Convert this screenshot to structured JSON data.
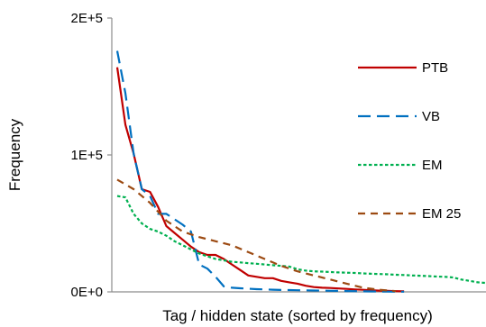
{
  "chart_data": {
    "type": "line",
    "title": "",
    "xlabel": "Tag / hidden state (sorted by frequency)",
    "ylabel": "Frequency",
    "ylim": [
      0,
      200000
    ],
    "xlim": [
      0,
      45
    ],
    "yticks": [
      {
        "value": 0,
        "label": "0E+0"
      },
      {
        "value": 100000,
        "label": "1E+5"
      },
      {
        "value": 200000,
        "label": "2E+5"
      }
    ],
    "grid": false,
    "legend_position": "right",
    "series": [
      {
        "name": "PTB",
        "color": "#c00000",
        "dash": "solid",
        "x": [
          0,
          1,
          2,
          3,
          4,
          5,
          6,
          7,
          8,
          9,
          10,
          11,
          12,
          13,
          14,
          15,
          16,
          17,
          18,
          19,
          20,
          21,
          22,
          23,
          24,
          25,
          26,
          27,
          28,
          29,
          30,
          31,
          32,
          33,
          34,
          35
        ],
        "y": [
          164000,
          122000,
          101000,
          75000,
          73000,
          62000,
          48000,
          43000,
          38000,
          33000,
          29000,
          27000,
          27000,
          24000,
          20000,
          16000,
          12000,
          11000,
          10000,
          10000,
          8000,
          7000,
          6000,
          4500,
          3500,
          3000,
          2800,
          2500,
          2200,
          1800,
          1500,
          1200,
          900,
          700,
          500,
          400
        ]
      },
      {
        "name": "VB",
        "color": "#0070c0",
        "dash": "long",
        "x": [
          0,
          1,
          2,
          3,
          4,
          5,
          6,
          7,
          8,
          9,
          10,
          11,
          12,
          13,
          14,
          15,
          16,
          17,
          18,
          19,
          20,
          21,
          22,
          23,
          24,
          25,
          26,
          27,
          28,
          29,
          30,
          31,
          32,
          33,
          34,
          35
        ],
        "y": [
          176000,
          145000,
          101000,
          75000,
          70000,
          57000,
          57000,
          53000,
          49000,
          44000,
          20000,
          17000,
          11000,
          4000,
          3000,
          2600,
          2300,
          2000,
          1800,
          1600,
          1400,
          1300,
          1200,
          1100,
          1000,
          900,
          800,
          700,
          600,
          500,
          400,
          300,
          250,
          200,
          150,
          100
        ]
      },
      {
        "name": "EM",
        "color": "#00b050",
        "dash": "dotted",
        "x": [
          0,
          1,
          2,
          3,
          4,
          5,
          6,
          7,
          8,
          9,
          10,
          11,
          12,
          13,
          14,
          15,
          16,
          17,
          18,
          19,
          20,
          21,
          22,
          23,
          24,
          25,
          26,
          27,
          28,
          29,
          30,
          31,
          32,
          33,
          34,
          35,
          36,
          37,
          38,
          39,
          40,
          41,
          42,
          43,
          44,
          45
        ],
        "y": [
          70000,
          69000,
          57000,
          50000,
          46000,
          44000,
          41000,
          37000,
          34000,
          31000,
          28000,
          26000,
          24000,
          23000,
          22000,
          21500,
          21000,
          20500,
          20000,
          19500,
          19000,
          18500,
          16500,
          15500,
          15000,
          14800,
          14500,
          14200,
          14000,
          13800,
          13500,
          13200,
          13000,
          12800,
          12500,
          12300,
          12000,
          11800,
          11500,
          11200,
          11000,
          10500,
          9000,
          8000,
          7000,
          6500
        ]
      },
      {
        "name": "EM 25",
        "color": "#9c4a12",
        "dash": "medium",
        "x": [
          0,
          2,
          4,
          6,
          8,
          10,
          12,
          14,
          16,
          18,
          20,
          22,
          24,
          26,
          28,
          30,
          32,
          34
        ],
        "y": [
          82000,
          75000,
          65000,
          52000,
          44000,
          40000,
          37000,
          34000,
          29000,
          24000,
          19000,
          15000,
          12000,
          9000,
          6000,
          3000,
          1500,
          500
        ]
      }
    ]
  }
}
